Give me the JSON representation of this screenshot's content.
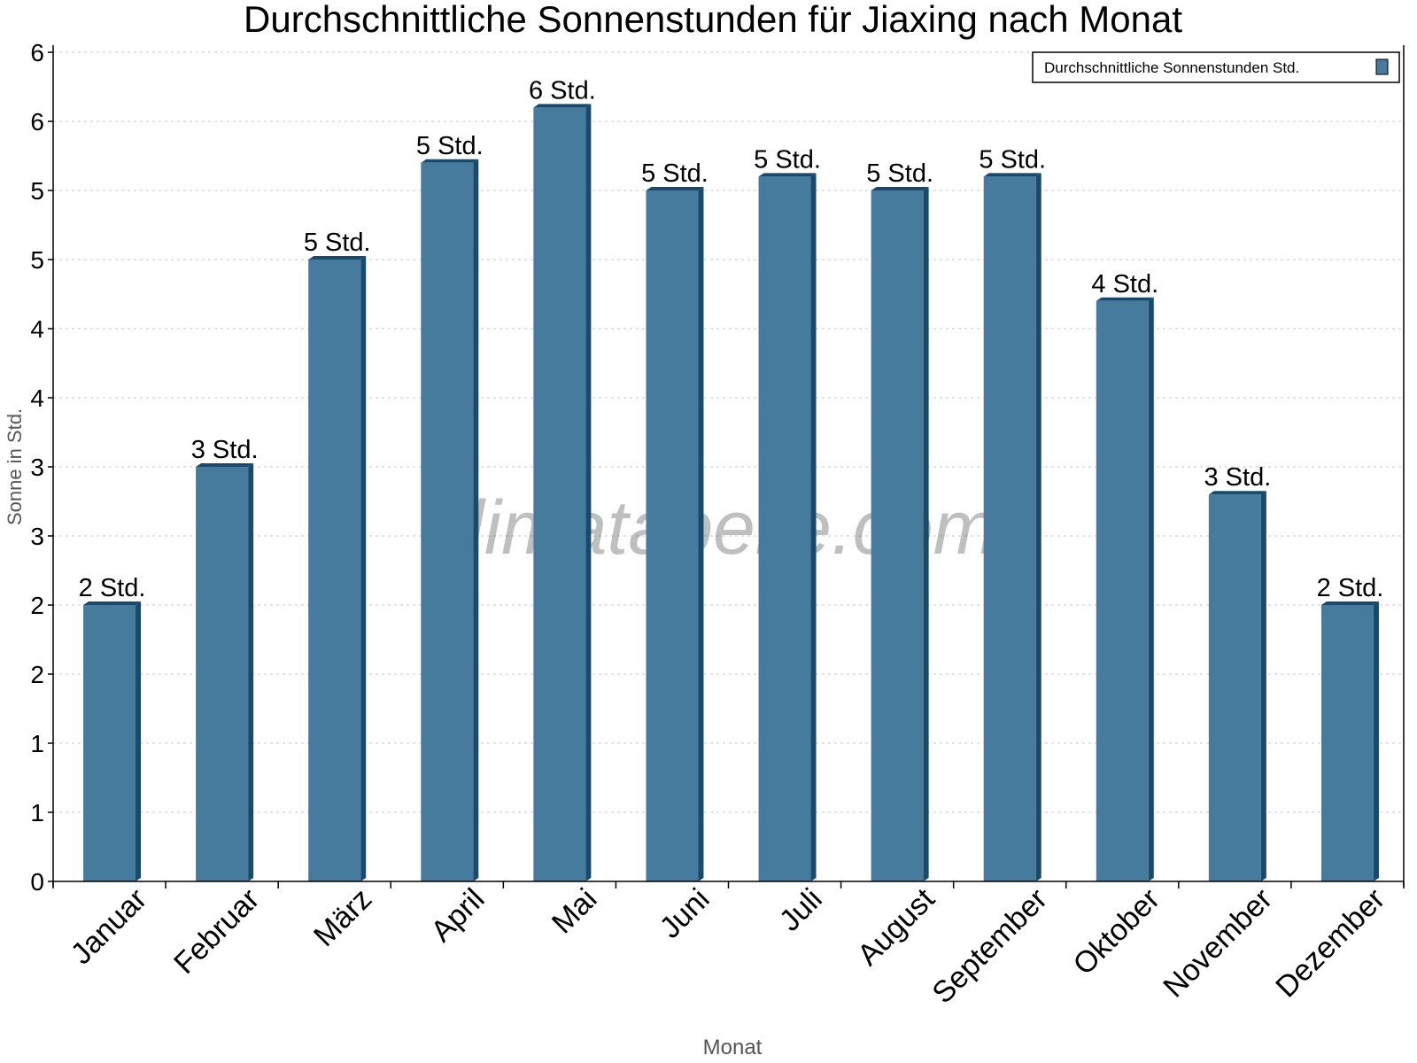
{
  "chart_data": {
    "type": "bar",
    "title": "Durchschnittliche Sonnenstunden für Jiaxing nach Monat",
    "xlabel": "Monat",
    "ylabel": "Sonne in Std.",
    "ylim": [
      0,
      6
    ],
    "yticks": [
      0,
      0.5,
      1,
      1.5,
      2,
      2.5,
      3,
      3.5,
      4,
      4.5,
      5,
      5.5,
      6
    ],
    "ytick_labels": [
      "0",
      "1",
      "1",
      "2",
      "2",
      "3",
      "3",
      "4",
      "4",
      "5",
      "5",
      "6",
      "6"
    ],
    "grid": true,
    "legend_position": "top-right",
    "watermark": "klimatabelle.com",
    "categories": [
      "Januar",
      "Februar",
      "März",
      "April",
      "Mai",
      "Juni",
      "Juli",
      "August",
      "September",
      "Oktober",
      "November",
      "Dezember"
    ],
    "series": [
      {
        "name": "Durchschnittliche Sonnenstunden Std.",
        "color": "#467b9d",
        "side_color": "#194a6b",
        "values": [
          2.0,
          3.0,
          4.5,
          5.2,
          5.6,
          5.0,
          5.1,
          5.0,
          5.1,
          4.2,
          2.8,
          2.0
        ],
        "data_labels": [
          "2 Std.",
          "3 Std.",
          "5 Std.",
          "5 Std.",
          "6 Std.",
          "5 Std.",
          "5 Std.",
          "5 Std.",
          "5 Std.",
          "4 Std.",
          "3 Std.",
          "2 Std."
        ]
      }
    ]
  }
}
